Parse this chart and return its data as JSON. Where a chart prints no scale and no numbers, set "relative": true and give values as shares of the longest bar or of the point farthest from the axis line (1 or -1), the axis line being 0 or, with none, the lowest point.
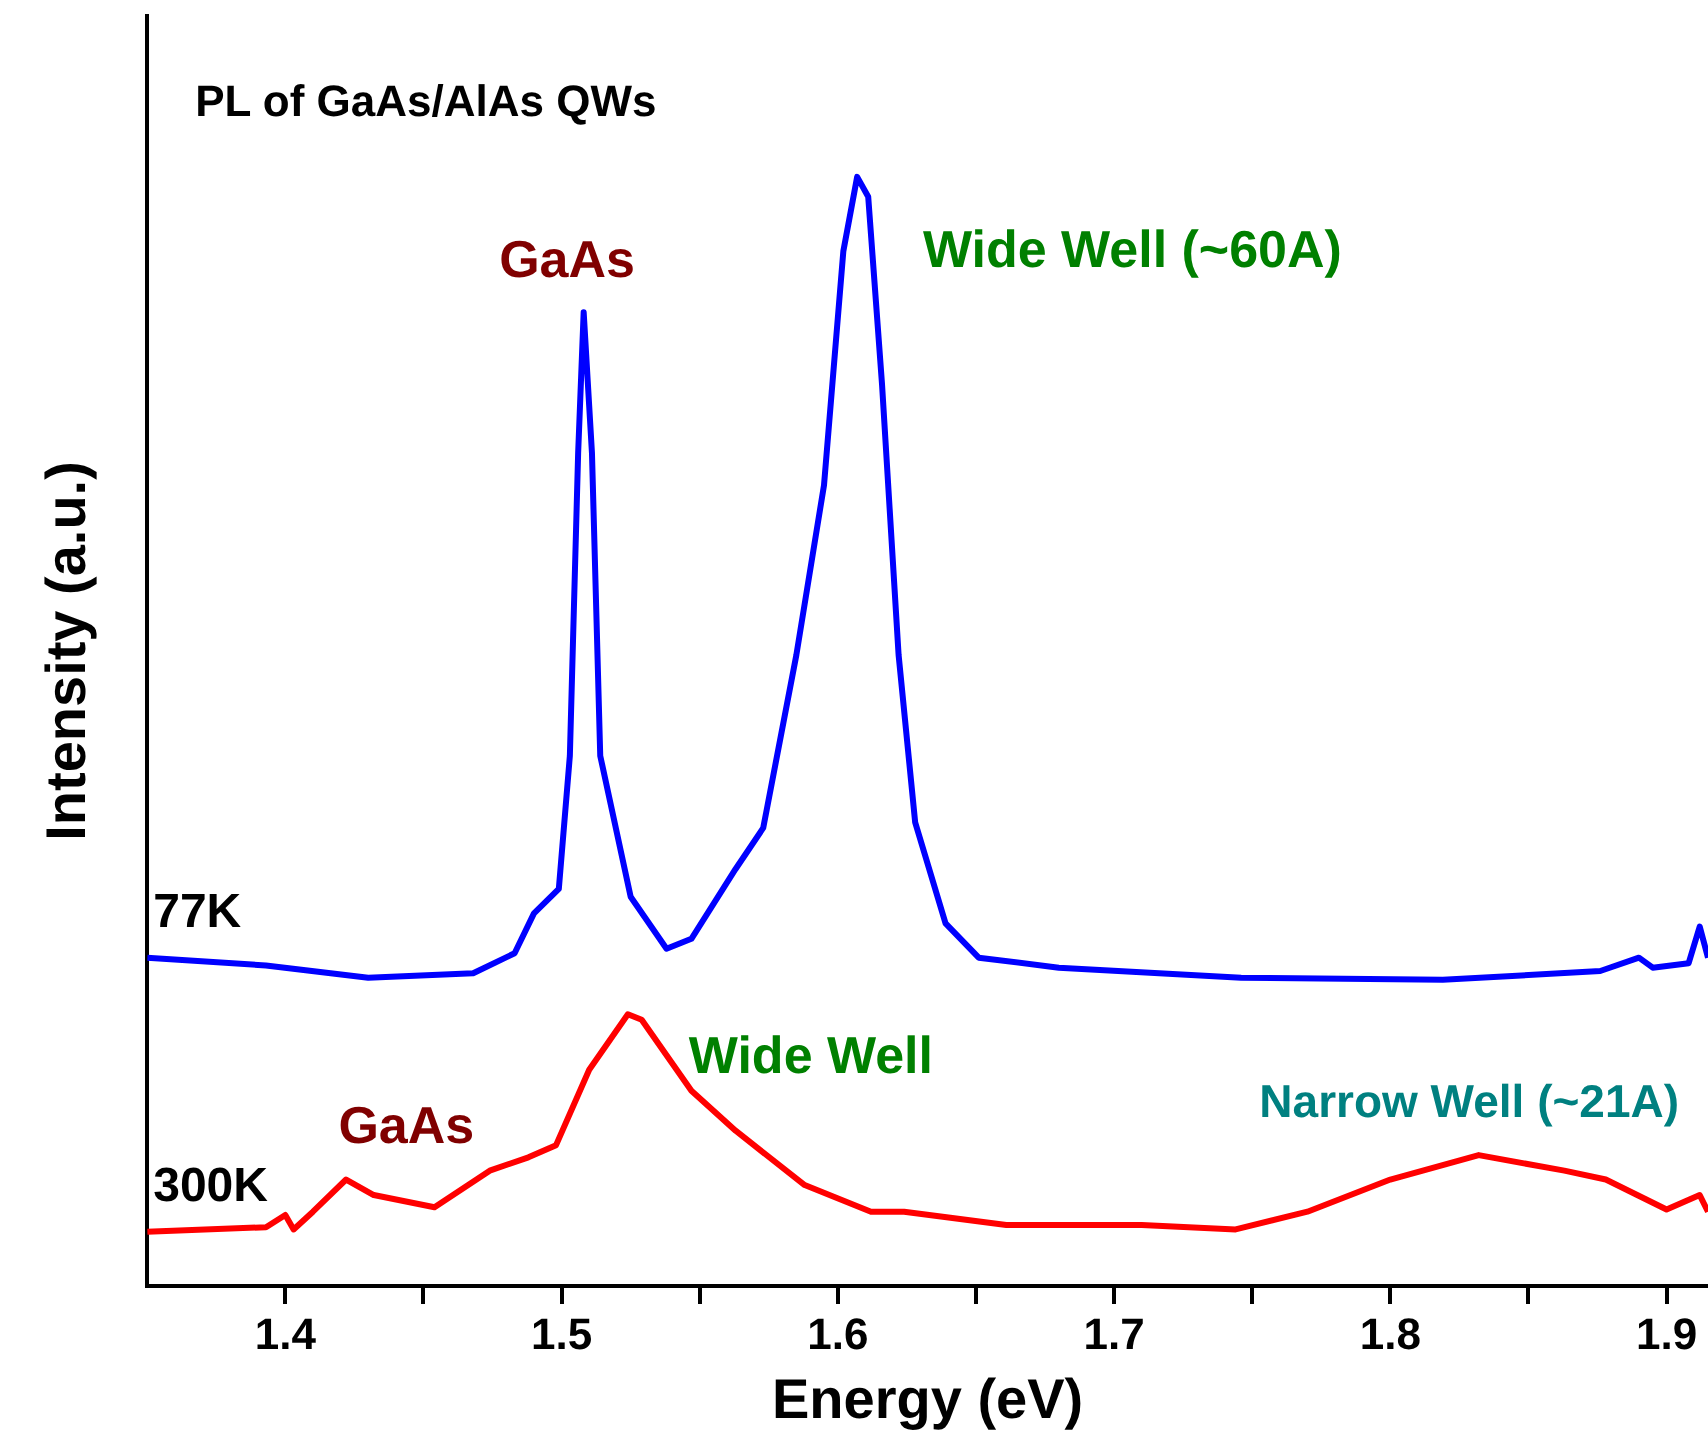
{
  "chart_data": {
    "type": "line",
    "title": "PL of GaAs/AlAs QWs",
    "xlabel": "Energy (eV)",
    "ylabel": "Intensity (a.u.)",
    "relative": true,
    "xlim": [
      1.35,
      1.915
    ],
    "xticks": [
      1.4,
      {
        "value": 1.45,
        "label": null
      },
      1.5,
      {
        "value": 1.55,
        "label": null
      },
      1.6,
      {
        "value": 1.65,
        "label": null
      },
      1.7,
      {
        "value": 1.75,
        "label": null
      },
      1.8,
      {
        "value": 1.85,
        "label": null
      },
      1.9
    ],
    "series": [
      {
        "name": "77K",
        "color": "#0000ff",
        "x": [
          1.35,
          1.393,
          1.43,
          1.468,
          1.483,
          1.49,
          1.499,
          1.503,
          1.506,
          1.508,
          1.511,
          1.514,
          1.525,
          1.538,
          1.547,
          1.563,
          1.573,
          1.585,
          1.595,
          1.602,
          1.607,
          1.611,
          1.616,
          1.622,
          1.628,
          1.639,
          1.651,
          1.68,
          1.746,
          1.819,
          1.876,
          1.89,
          1.895,
          1.908,
          1.912,
          1.915
        ],
        "values": [
          0.296,
          0.289,
          0.278,
          0.282,
          0.3,
          0.336,
          0.358,
          0.478,
          0.751,
          0.878,
          0.751,
          0.478,
          0.351,
          0.304,
          0.313,
          0.376,
          0.413,
          0.569,
          0.722,
          0.933,
          1.0,
          0.982,
          0.813,
          0.569,
          0.418,
          0.327,
          0.296,
          0.287,
          0.278,
          0.276,
          0.284,
          0.296,
          0.287,
          0.291,
          0.324,
          0.296
        ]
      },
      {
        "name": "300K",
        "color": "#ff0000",
        "x": [
          1.35,
          1.393,
          1.4,
          1.403,
          1.41,
          1.422,
          1.432,
          1.454,
          1.474,
          1.488,
          1.498,
          1.51,
          1.524,
          1.529,
          1.547,
          1.563,
          1.588,
          1.612,
          1.624,
          1.661,
          1.71,
          1.744,
          1.77,
          1.8,
          1.832,
          1.863,
          1.878,
          1.9,
          1.912,
          1.915
        ],
        "values": [
          0.049,
          0.053,
          0.064,
          0.051,
          0.067,
          0.096,
          0.082,
          0.071,
          0.104,
          0.116,
          0.127,
          0.195,
          0.245,
          0.24,
          0.176,
          0.14,
          0.091,
          0.067,
          0.067,
          0.055,
          0.055,
          0.051,
          0.067,
          0.096,
          0.118,
          0.104,
          0.096,
          0.069,
          0.082,
          0.067
        ]
      }
    ],
    "annotations": [
      "GaAs",
      "Wide Well (~60A)",
      "GaAs",
      "Wide Well",
      "Narrow Well (~21A)"
    ]
  }
}
